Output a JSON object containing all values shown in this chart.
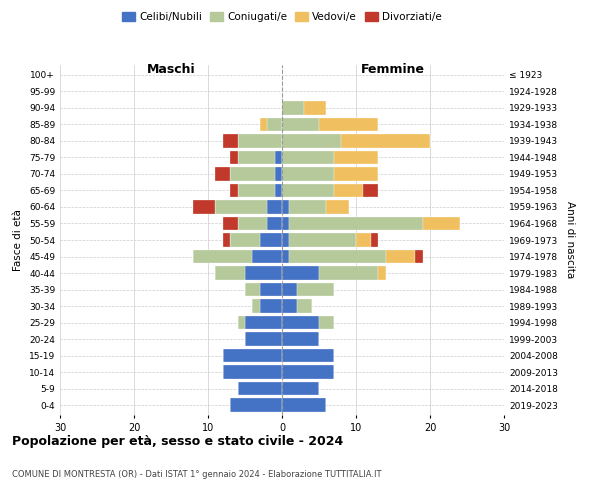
{
  "age_groups": [
    "0-4",
    "5-9",
    "10-14",
    "15-19",
    "20-24",
    "25-29",
    "30-34",
    "35-39",
    "40-44",
    "45-49",
    "50-54",
    "55-59",
    "60-64",
    "65-69",
    "70-74",
    "75-79",
    "80-84",
    "85-89",
    "90-94",
    "95-99",
    "100+"
  ],
  "birth_years": [
    "2019-2023",
    "2014-2018",
    "2009-2013",
    "2004-2008",
    "1999-2003",
    "1994-1998",
    "1989-1993",
    "1984-1988",
    "1979-1983",
    "1974-1978",
    "1969-1973",
    "1964-1968",
    "1959-1963",
    "1954-1958",
    "1949-1953",
    "1944-1948",
    "1939-1943",
    "1934-1938",
    "1929-1933",
    "1924-1928",
    "≤ 1923"
  ],
  "colors": {
    "celibi": "#4472c4",
    "coniugati": "#b5c99a",
    "vedovi": "#f0c060",
    "divorziati": "#c0392b"
  },
  "males": {
    "celibi": [
      7,
      6,
      8,
      8,
      5,
      5,
      3,
      3,
      5,
      4,
      3,
      2,
      2,
      1,
      1,
      1,
      0,
      0,
      0,
      0,
      0
    ],
    "coniugati": [
      0,
      0,
      0,
      0,
      0,
      1,
      1,
      2,
      4,
      8,
      4,
      4,
      7,
      5,
      6,
      5,
      6,
      2,
      0,
      0,
      0
    ],
    "vedovi": [
      0,
      0,
      0,
      0,
      0,
      0,
      0,
      0,
      0,
      0,
      0,
      0,
      0,
      0,
      0,
      0,
      0,
      1,
      0,
      0,
      0
    ],
    "divorziati": [
      0,
      0,
      0,
      0,
      0,
      0,
      0,
      0,
      0,
      0,
      1,
      2,
      3,
      1,
      2,
      1,
      2,
      0,
      0,
      0,
      0
    ]
  },
  "females": {
    "nubili": [
      6,
      5,
      7,
      7,
      5,
      5,
      2,
      2,
      5,
      1,
      1,
      1,
      1,
      0,
      0,
      0,
      0,
      0,
      0,
      0,
      0
    ],
    "coniugate": [
      0,
      0,
      0,
      0,
      0,
      2,
      2,
      5,
      8,
      13,
      9,
      18,
      5,
      7,
      7,
      7,
      8,
      5,
      3,
      0,
      0
    ],
    "vedove": [
      0,
      0,
      0,
      0,
      0,
      0,
      0,
      0,
      1,
      4,
      2,
      5,
      3,
      4,
      6,
      6,
      12,
      8,
      3,
      0,
      0
    ],
    "divorziate": [
      0,
      0,
      0,
      0,
      0,
      0,
      0,
      0,
      0,
      1,
      1,
      0,
      0,
      2,
      0,
      0,
      0,
      0,
      0,
      0,
      0
    ]
  },
  "xlim": 30,
  "title": "Popolazione per età, sesso e stato civile - 2024",
  "subtitle": "COMUNE DI MONTRESTA (OR) - Dati ISTAT 1° gennaio 2024 - Elaborazione TUTTITALIA.IT",
  "ylabel": "Fasce di età",
  "ylabel_right": "Anni di nascita",
  "xlabel_left": "Maschi",
  "xlabel_right": "Femmine"
}
